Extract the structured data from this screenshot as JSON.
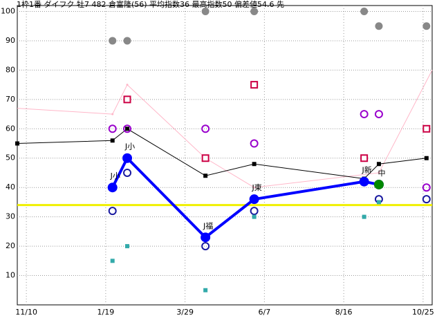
{
  "chart_data": {
    "type": "line",
    "title": "1枠1番 ダイフク 牡7 482 倉富隆(56) 平均指数36 最高指数50 偏差値54.6 先",
    "xlim": [
      -8,
      358
    ],
    "xticks": [
      {
        "value": 0,
        "label": "11/10"
      },
      {
        "value": 70,
        "label": "1/19"
      },
      {
        "value": 140,
        "label": "3/29"
      },
      {
        "value": 210,
        "label": "6/7"
      },
      {
        "value": 280,
        "label": "8/16"
      },
      {
        "value": 350,
        "label": "10/25"
      }
    ],
    "ylim": [
      0,
      102
    ],
    "yticks": [
      10,
      20,
      30,
      40,
      50,
      60,
      70,
      80,
      90,
      100
    ],
    "grid": true,
    "hlines": [
      {
        "value": 34,
        "color": "#f0f000"
      }
    ],
    "series": [
      {
        "color": "#ffb6c8",
        "marker": "dot",
        "line": 1,
        "x": [
          -8,
          76,
          89,
          158,
          201,
          311,
          358
        ],
        "values": [
          67,
          65,
          75,
          50,
          40,
          45,
          80
        ]
      },
      {
        "color": "#000000",
        "marker": "square",
        "line": 1,
        "x": [
          -8,
          76,
          89,
          158,
          201,
          298,
          311,
          353
        ],
        "values": [
          55,
          56,
          60,
          44,
          48,
          43,
          48,
          50
        ]
      },
      {
        "color": "#888888",
        "marker": "bigdot",
        "line": 0,
        "x": [
          76,
          89,
          158,
          201,
          298,
          311,
          353
        ],
        "values": [
          90,
          90,
          100,
          100,
          100,
          95,
          95
        ]
      },
      {
        "color": "#9900cc",
        "marker": "ring",
        "line": 0,
        "x": [
          76,
          89,
          158,
          201,
          298,
          311,
          353
        ],
        "values": [
          60,
          60,
          60,
          55,
          65,
          65,
          40
        ]
      },
      {
        "color": "#cc0044",
        "marker": "box",
        "line": 0,
        "x": [
          89,
          158,
          201,
          298,
          353
        ],
        "values": [
          70,
          50,
          75,
          50,
          60
        ]
      },
      {
        "color": "#1a1aa0",
        "marker": "ring",
        "line": 0,
        "x": [
          76,
          89,
          158,
          201,
          311,
          353
        ],
        "values": [
          32,
          45,
          20,
          32,
          36,
          36
        ]
      },
      {
        "color": "#33aaaa",
        "marker": "square",
        "line": 0,
        "x": [
          76,
          89,
          158,
          201,
          298,
          311
        ],
        "values": [
          15,
          20,
          5,
          30,
          30,
          35
        ]
      },
      {
        "color": "#0000ff",
        "marker": "disc",
        "line": 4,
        "x": [
          76,
          89,
          158,
          201,
          298,
          311
        ],
        "values": [
          40,
          50,
          23,
          36,
          42,
          41
        ],
        "point_labels": [
          "J小",
          "J小",
          "J福",
          "J東",
          "J新",
          null
        ]
      },
      {
        "color": "#008800",
        "marker": "disc",
        "line": 0,
        "x": [
          311
        ],
        "values": [
          41
        ],
        "point_labels": [
          "中"
        ]
      }
    ]
  }
}
